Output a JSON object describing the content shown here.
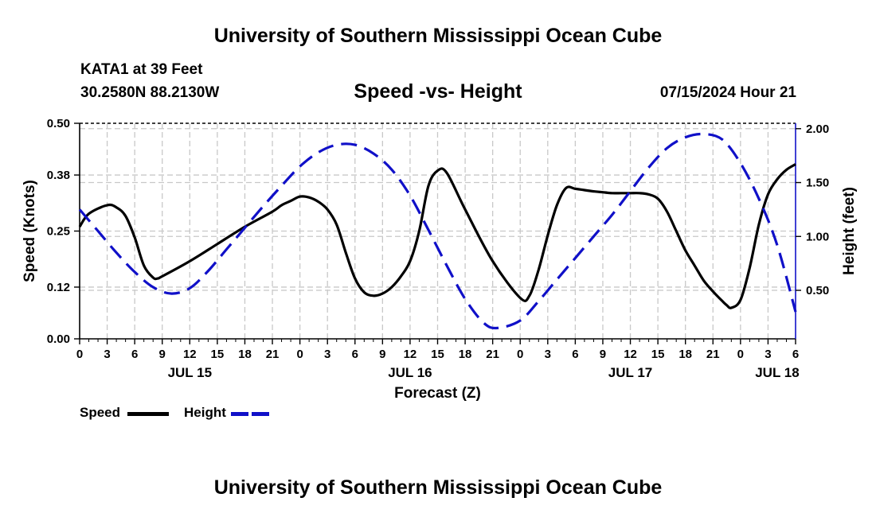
{
  "header": {
    "title": "University of Southern Mississippi Ocean Cube",
    "station": "KATA1 at 39 Feet",
    "location": "30.2580N  88.2130W",
    "subtitle": "Speed -vs- Height",
    "timestamp": "07/15/2024 Hour 21"
  },
  "footer": {
    "title": "University of Southern Mississippi Ocean Cube"
  },
  "legend": {
    "speed_label": "Speed",
    "height_label": "Height"
  },
  "colors": {
    "speed": "#000000",
    "height": "#1010c8",
    "grid": "#c8c8c8"
  },
  "chart_data": {
    "type": "line",
    "title": "Speed -vs- Height",
    "xlabel": "Forecast (Z)",
    "ylabel": "Speed (Knots)",
    "y2label": "Height (feet)",
    "xlim": [
      0,
      78
    ],
    "ylim": [
      0,
      0.5
    ],
    "y2lim": [
      0.05,
      2.05
    ],
    "grid": true,
    "x_tick_labels": [
      "0",
      "3",
      "6",
      "9",
      "12",
      "15",
      "18",
      "21",
      "0",
      "3",
      "6",
      "9",
      "12",
      "15",
      "18",
      "21",
      "0",
      "3",
      "6",
      "9",
      "12",
      "15",
      "18",
      "21",
      "0",
      "3",
      "6"
    ],
    "day_labels": [
      {
        "label": "JUL 15",
        "x": 12
      },
      {
        "label": "JUL 16",
        "x": 36
      },
      {
        "label": "JUL 17",
        "x": 60
      },
      {
        "label": "JUL 18",
        "x": 76
      }
    ],
    "y_ticks": [
      "0.00",
      "0.12",
      "0.25",
      "0.38",
      "0.50"
    ],
    "y2_ticks": [
      "0.50",
      "1.00",
      "1.50",
      "2.00"
    ],
    "series": [
      {
        "name": "Speed",
        "axis": "left",
        "x": [
          0,
          1,
          3,
          4,
          5,
          6,
          7,
          8,
          8.5,
          9,
          12,
          15,
          18,
          21,
          22,
          23,
          24,
          25,
          26,
          27,
          28,
          29,
          30,
          31,
          32,
          33,
          34,
          35,
          36,
          37,
          38,
          39,
          40,
          42,
          45,
          48,
          49,
          50,
          51,
          52,
          53,
          54,
          55,
          56,
          57,
          58,
          59,
          60,
          61,
          62,
          63,
          64,
          65,
          66,
          67,
          68,
          69,
          70,
          70.5,
          71,
          72,
          73,
          74,
          75,
          76,
          77,
          78
        ],
        "y": [
          0.26,
          0.29,
          0.31,
          0.305,
          0.285,
          0.235,
          0.17,
          0.142,
          0.14,
          0.145,
          0.18,
          0.22,
          0.26,
          0.295,
          0.31,
          0.32,
          0.33,
          0.328,
          0.318,
          0.3,
          0.265,
          0.2,
          0.14,
          0.108,
          0.1,
          0.105,
          0.12,
          0.145,
          0.18,
          0.25,
          0.355,
          0.39,
          0.385,
          0.3,
          0.18,
          0.095,
          0.1,
          0.16,
          0.24,
          0.31,
          0.35,
          0.348,
          0.345,
          0.342,
          0.34,
          0.338,
          0.338,
          0.338,
          0.338,
          0.335,
          0.325,
          0.295,
          0.25,
          0.205,
          0.17,
          0.135,
          0.11,
          0.088,
          0.078,
          0.072,
          0.09,
          0.165,
          0.265,
          0.335,
          0.37,
          0.392,
          0.405
        ],
        "color": "#000000"
      },
      {
        "name": "Height",
        "axis": "right",
        "x": [
          0,
          2,
          4,
          6,
          8,
          10,
          12,
          14,
          16,
          18,
          20,
          22,
          24,
          26,
          28,
          30,
          32,
          34,
          36,
          38,
          40,
          42,
          44,
          45.5,
          48,
          50,
          52,
          54,
          56,
          58,
          60,
          62,
          64,
          66,
          68,
          70,
          72,
          74,
          76,
          78
        ],
        "y": [
          1.25,
          1.05,
          0.85,
          0.67,
          0.53,
          0.47,
          0.52,
          0.68,
          0.88,
          1.08,
          1.28,
          1.47,
          1.65,
          1.78,
          1.85,
          1.85,
          1.77,
          1.62,
          1.38,
          1.06,
          0.73,
          0.42,
          0.2,
          0.15,
          0.22,
          0.4,
          0.6,
          0.8,
          1.0,
          1.2,
          1.42,
          1.64,
          1.82,
          1.92,
          1.95,
          1.9,
          1.68,
          1.35,
          0.92,
          0.3
        ],
        "color": "#1010c8"
      }
    ]
  }
}
